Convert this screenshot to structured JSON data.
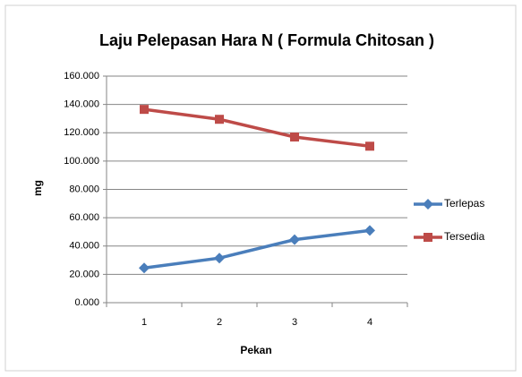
{
  "chart_data": {
    "type": "line",
    "title": "Laju Pelepasan Hara N ( Formula Chitosan )",
    "x_label": "Pekan",
    "y_label": "mg",
    "categories": [
      "1",
      "2",
      "3",
      "4"
    ],
    "series": [
      {
        "name": "Terlepas",
        "color": "#4a7ebb",
        "marker": "diamond",
        "values": [
          24.5,
          31.5,
          44.5,
          51
        ]
      },
      {
        "name": "Tersedia",
        "color": "#be4b48",
        "marker": "square",
        "values": [
          136.5,
          129.5,
          117,
          110.5
        ]
      }
    ],
    "ylim": [
      0,
      160
    ],
    "yticks": [
      {
        "value": 0,
        "label": "0.000"
      },
      {
        "value": 20,
        "label": "20.000"
      },
      {
        "value": 40,
        "label": "40.000"
      },
      {
        "value": 60,
        "label": "60.000"
      },
      {
        "value": 80,
        "label": "80.000"
      },
      {
        "value": 100,
        "label": "100.000"
      },
      {
        "value": 120,
        "label": "120.000"
      },
      {
        "value": 140,
        "label": "140.000"
      },
      {
        "value": 160,
        "label": "160.000"
      }
    ],
    "grid": true,
    "legend": "right"
  }
}
